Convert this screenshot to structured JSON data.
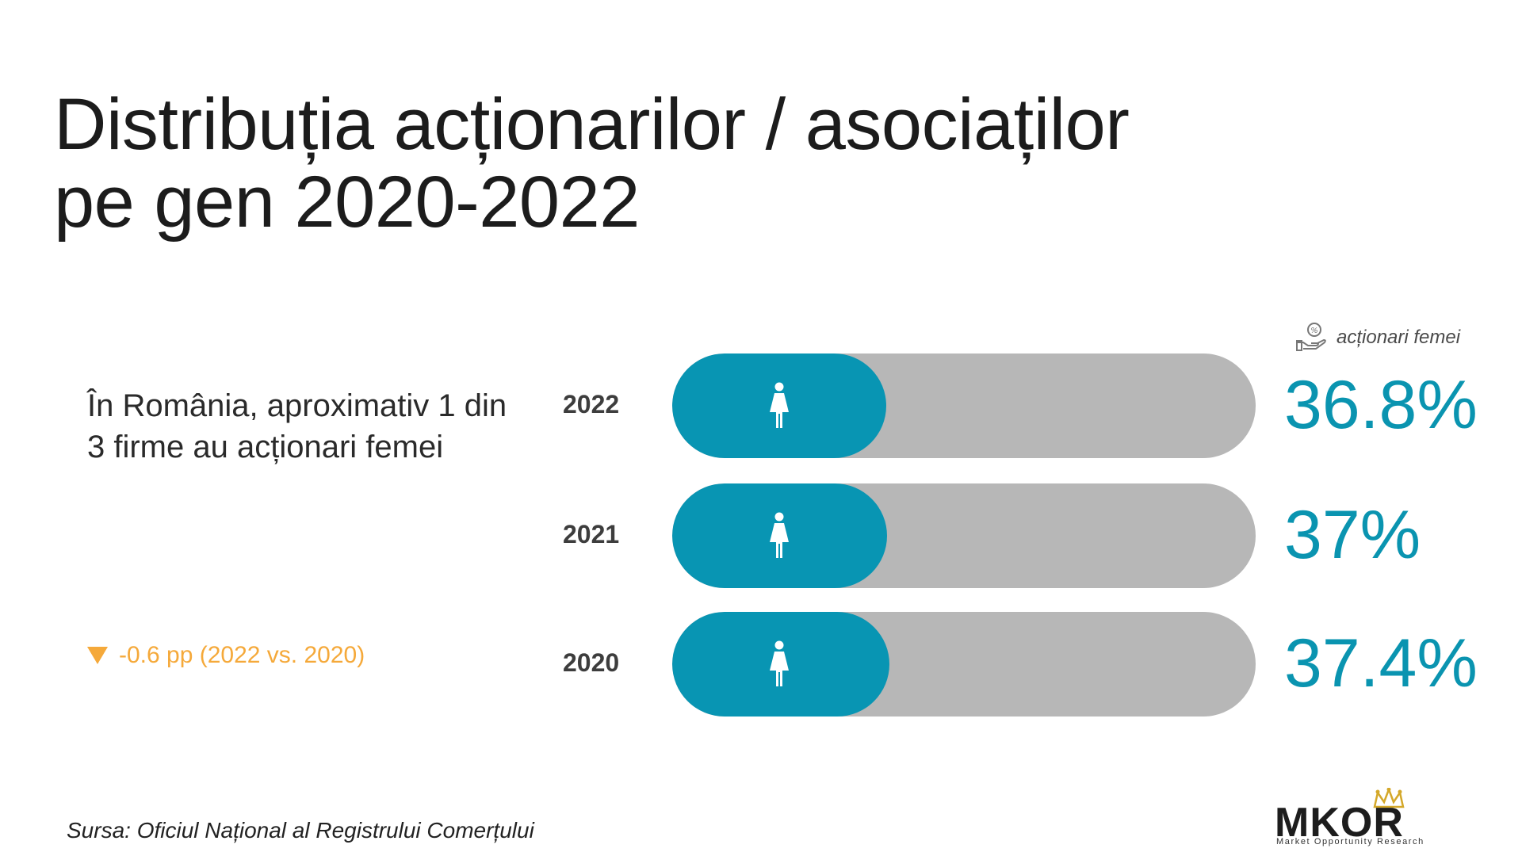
{
  "title": {
    "line1": "Distribuția acționarilor / asociaților",
    "line2": "pe gen 2020-2022"
  },
  "summary": "În România, aproximativ 1 din 3 firme au acționari femei",
  "delta": {
    "text": "-0.6 pp (2022 vs. 2020)",
    "direction": "down",
    "color": "#f5a93a"
  },
  "legend": {
    "label": "acționari femei",
    "icon": "hand-percent-icon"
  },
  "colors": {
    "fill": "#0895b3",
    "track": "#b7b7b7",
    "value": "#0a94b0"
  },
  "chart_data": {
    "type": "bar",
    "orientation": "horizontal",
    "categories": [
      "2022",
      "2021",
      "2020"
    ],
    "series": [
      {
        "name": "acționari femei",
        "values": [
          36.8,
          37,
          37.4
        ]
      }
    ],
    "value_labels": [
      "36.8%",
      "37%",
      "37.4%"
    ],
    "unit": "%",
    "title": "Distribuția acționarilor / asociaților pe gen 2020-2022",
    "xlabel": "",
    "ylabel": "",
    "icon": "female-person-icon"
  },
  "source": "Sursa: Oficiul Național al Registrului Comerțului",
  "logo": {
    "name": "MKOR",
    "tagline": "Market Opportunity Research"
  }
}
